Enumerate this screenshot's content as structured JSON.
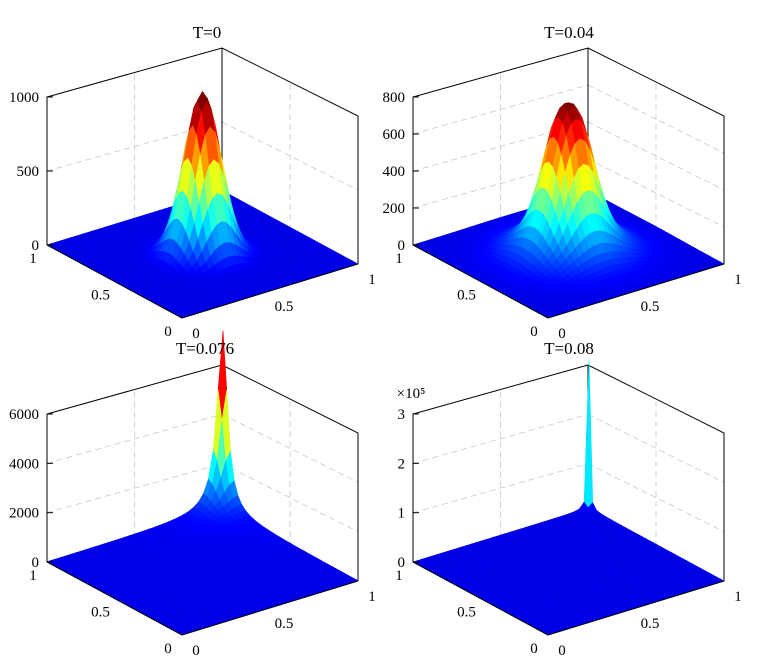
{
  "chart_data": [
    {
      "type": "surface",
      "title": "T=0",
      "zlim": [
        0,
        1000
      ],
      "z_ticks": [
        "0",
        "500",
        "1000"
      ],
      "x_ticks": [
        "0",
        "0.5",
        "1"
      ],
      "y_ticks": [
        "0",
        "0.5",
        "1"
      ],
      "z_exponent": "",
      "peak": {
        "x": 0.5,
        "y": 0.5,
        "value": 1100
      },
      "shoulder": 0,
      "colormap": "jet"
    },
    {
      "type": "surface",
      "title": "T=0.04",
      "zlim": [
        0,
        800
      ],
      "z_ticks": [
        "0",
        "200",
        "400",
        "600",
        "800"
      ],
      "x_ticks": [
        "0",
        "0.5",
        "1"
      ],
      "y_ticks": [
        "0",
        "0.5",
        "1"
      ],
      "z_exponent": "",
      "peak": {
        "x": 0.5,
        "y": 0.5,
        "value": 820
      },
      "shoulder": 290,
      "colormap": "jet"
    },
    {
      "type": "surface",
      "title": "T=0.076",
      "zlim": [
        0,
        6000
      ],
      "z_ticks": [
        "0",
        "2000",
        "4000",
        "6000"
      ],
      "x_ticks": [
        "0",
        "0.5",
        "1"
      ],
      "y_ticks": [
        "0",
        "0.5",
        "1"
      ],
      "z_exponent": "",
      "peak": {
        "x": 1.0,
        "y": 1.0,
        "value": 7200
      },
      "shoulder": 0,
      "colormap": "jet"
    },
    {
      "type": "surface",
      "title": "T=0.08",
      "zlim": [
        0,
        3
      ],
      "z_ticks": [
        "0",
        "1",
        "2",
        "3"
      ],
      "x_ticks": [
        "0",
        "0.5",
        "1"
      ],
      "y_ticks": [
        "0",
        "0.5",
        "1"
      ],
      "z_exponent": "×10⁵",
      "peak": {
        "x": 1.0,
        "y": 1.0,
        "value": 3
      },
      "shoulder": 0,
      "colormap": "jet"
    }
  ]
}
